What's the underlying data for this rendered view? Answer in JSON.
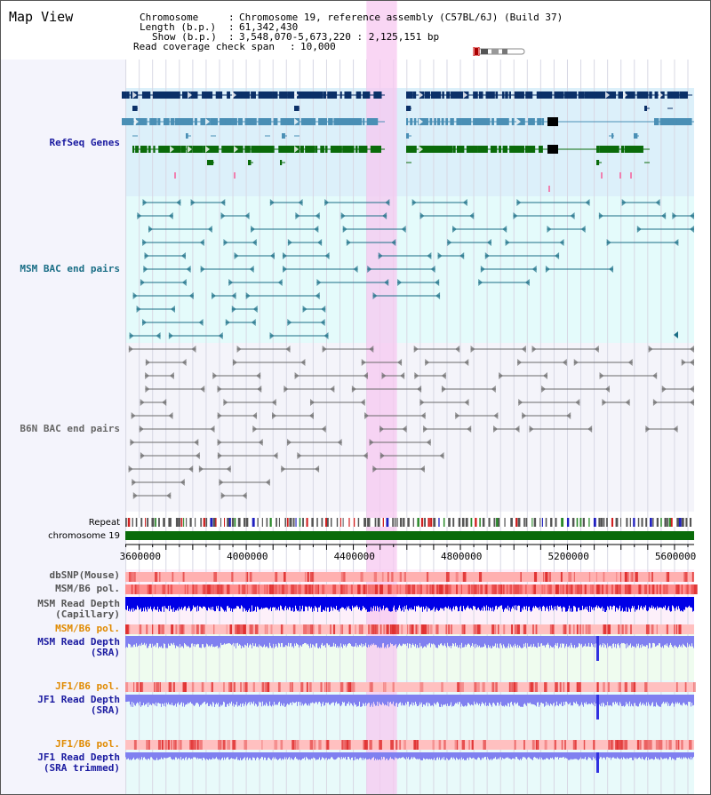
{
  "view": {
    "title": "Map View"
  },
  "info": {
    "chromosome_label": "Chromosome",
    "chromosome_value": "Chromosome 19, reference assembly (C57BL/6J) (Build 37)",
    "length_label": "Length (b.p.)",
    "length_value": "61,342,430",
    "show_label": "Show (b.p.)",
    "show_value": "3,548,070-5,673,220 : 2,125,151 bp",
    "coverage_label": "Read coverage check span",
    "coverage_value": "10,000"
  },
  "tracks": {
    "refseq": "RefSeq Genes",
    "msm_bac": "MSM BAC end pairs",
    "b6n_bac": "B6N BAC end pairs",
    "repeat": "Repeat",
    "chromosome": "chromosome 19",
    "dbsnp": "dbSNP(Mouse)",
    "msm_b6_pol": "MSM/B6 pol.",
    "msm_depth_cap_1": "MSM Read Depth",
    "msm_depth_cap_2": "(Capillary)",
    "msm_b6_pol2": "MSM/B6 pol.",
    "msm_depth_sra_1": "MSM Read Depth",
    "msm_depth_sra_2": "(SRA)",
    "jf1_b6_pol": "JF1/B6 pol.",
    "jf1_depth_sra_1": "JF1 Read Depth",
    "jf1_depth_sra_2": "(SRA)",
    "jf1_b6_pol2": "JF1/B6 pol.",
    "jf1_depth_trim_1": "JF1 Read Depth",
    "jf1_depth_trim_2": "(SRA trimmed)"
  },
  "axis": {
    "ticks": [
      "3600000",
      "4000000",
      "4400000",
      "4800000",
      "5200000",
      "5600000"
    ],
    "tick_values": [
      3600000,
      4000000,
      4400000,
      4800000,
      5200000,
      5600000
    ],
    "range": [
      3548070,
      5673220
    ]
  },
  "highlight": {
    "start": 4449000,
    "end": 4563000
  },
  "colors": {
    "refseq_dark": "#0b3068",
    "refseq_mid": "#4a8fb5",
    "refseq_green": "#0a6b0a",
    "msm_bac": "#1a6e86",
    "b6n_bac": "#6a6a6a",
    "highlight": "#f7c8f0",
    "refseq_bg": "#dcf0fa",
    "msm_bg": "#e4fbfb",
    "b6n_bg": "#f4f4fa",
    "chrom": "#0a6b0a",
    "depth_blue": "#0000e6",
    "depth_light": "#8080f0",
    "pol_red": "#e03030"
  }
}
